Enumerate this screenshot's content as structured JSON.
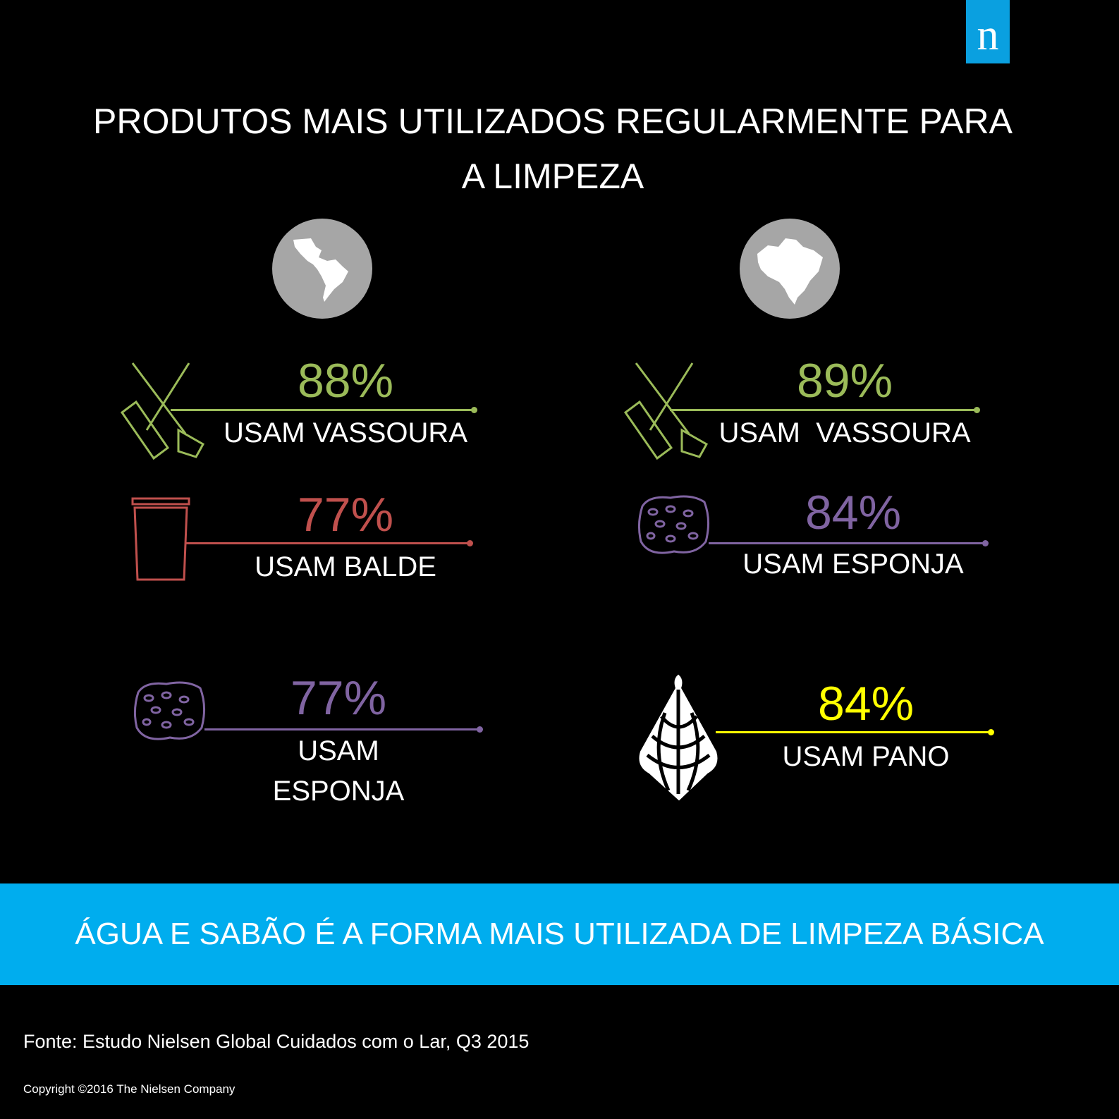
{
  "logo": {
    "letter": "n",
    "color": "#0aa0e0"
  },
  "title": {
    "line1": "PRODUTOS MAIS UTILIZADOS REGULARMENTE PARA",
    "line2": "A LIMPEZA"
  },
  "columns": [
    {
      "region_icon": "latin-america-map-icon",
      "items": [
        {
          "icon": "broom-icon",
          "percent": "88%",
          "value": 88,
          "label": "USAM VASSOURA",
          "color": "#9bbb59"
        },
        {
          "icon": "bucket-icon",
          "percent": "77%",
          "value": 77,
          "label": "USAM BALDE",
          "color": "#c0504d"
        },
        {
          "icon": "sponge-icon",
          "percent": "77%",
          "value": 77,
          "label_line1": "USAM",
          "label_line2": "ESPONJA",
          "color": "#8064a2"
        }
      ]
    },
    {
      "region_icon": "brazil-map-icon",
      "items": [
        {
          "icon": "broom-icon",
          "percent": "89%",
          "value": 89,
          "label": "USAM  VASSOURA",
          "color": "#9bbb59"
        },
        {
          "icon": "sponge-icon",
          "percent": "84%",
          "value": 84,
          "label": "USAM ESPONJA",
          "color": "#8064a2"
        },
        {
          "icon": "cloth-icon",
          "percent": "84%",
          "value": 84,
          "label": "USAM PANO",
          "color": "#ffff00"
        }
      ]
    }
  ],
  "banner": {
    "text": "ÁGUA E SABÃO É A FORMA MAIS UTILIZADA DE LIMPEZA BÁSICA",
    "color": "#00adee"
  },
  "footer": {
    "source": "Fonte: Estudo Nielsen Global Cuidados com o Lar, Q3 2015",
    "copyright": "Copyright ©2016 The Nielsen Company"
  }
}
